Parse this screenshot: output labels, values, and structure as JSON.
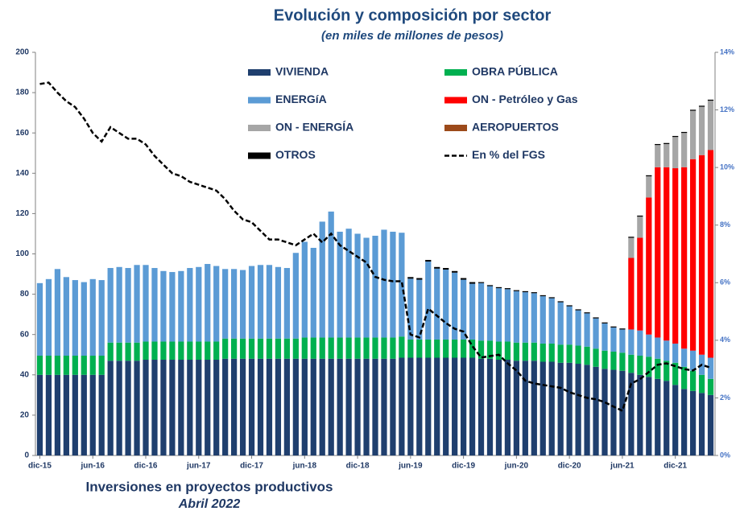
{
  "chart_data": {
    "type": "bar",
    "stacked": true,
    "title": "Evolución y composición por sector",
    "subtitle": "(en miles de millones de pesos)",
    "footer": "Inversiones en proyectos productivos",
    "footer_date": "Abril 2022",
    "legend": "upper center",
    "grid": false,
    "categories": [
      "dic-15",
      null,
      null,
      null,
      null,
      null,
      "jun-16",
      null,
      null,
      null,
      null,
      null,
      "dic-16",
      null,
      null,
      null,
      null,
      null,
      "jun-17",
      null,
      null,
      null,
      null,
      null,
      "dic-17",
      null,
      null,
      null,
      null,
      null,
      "jun-18",
      null,
      null,
      null,
      null,
      null,
      "dic-18",
      null,
      null,
      null,
      null,
      null,
      "jun-19",
      null,
      null,
      null,
      null,
      null,
      "dic-19",
      null,
      null,
      null,
      null,
      null,
      "jun-20",
      null,
      null,
      null,
      null,
      null,
      "dic-20",
      null,
      null,
      null,
      null,
      null,
      "jun-21",
      null,
      null,
      null,
      null,
      null,
      "dic-21",
      null,
      null,
      null,
      null
    ],
    "ylim": [
      0,
      200
    ],
    "yticks": [
      0,
      20,
      40,
      60,
      80,
      100,
      120,
      140,
      160,
      180,
      200
    ],
    "y2lim": [
      0,
      14
    ],
    "y2ticks": [
      {
        "value": 0,
        "label": "0%"
      },
      {
        "value": 2,
        "label": "2%"
      },
      {
        "value": 4,
        "label": "4%"
      },
      {
        "value": 6,
        "label": "6%"
      },
      {
        "value": 8,
        "label": "8%"
      },
      {
        "value": 10,
        "label": "10%"
      },
      {
        "value": 12,
        "label": "12%"
      },
      {
        "value": 14,
        "label": "14%"
      }
    ],
    "series": [
      {
        "name": "VIVIENDA",
        "color": "#1f3f6e",
        "values": [
          40,
          40,
          40,
          40,
          40,
          40,
          40,
          40,
          47,
          47,
          47,
          47,
          47.5,
          47.5,
          47.5,
          47.5,
          47.5,
          47.5,
          47.5,
          47.5,
          47.5,
          48,
          48,
          48,
          48,
          48,
          48,
          48,
          48,
          48,
          48,
          48,
          48,
          48,
          48,
          48,
          48,
          48,
          48,
          48,
          48,
          48.5,
          48.5,
          48.5,
          48.5,
          48.5,
          48.5,
          48.5,
          48.5,
          48.5,
          48,
          48,
          47.5,
          47.5,
          47,
          47,
          47,
          46.5,
          46.5,
          46,
          46,
          45.5,
          45,
          44,
          43,
          42.5,
          42,
          41,
          40,
          39,
          38,
          37,
          35,
          33,
          32,
          31,
          30
        ]
      },
      {
        "name": "OBRA  PÚBLICA",
        "color": "#00b050",
        "values": [
          9.5,
          9.5,
          9.5,
          9.5,
          9.5,
          9.5,
          9.5,
          9.5,
          9,
          9,
          9,
          9,
          9,
          9,
          9,
          9,
          9,
          9,
          9,
          9,
          9,
          10,
          10,
          10,
          10,
          10,
          10,
          10,
          10,
          10,
          10.5,
          10.5,
          10.5,
          10.5,
          10.5,
          10.5,
          10.5,
          10.5,
          10.5,
          10.5,
          10.5,
          10.5,
          9,
          9,
          9,
          9,
          9,
          9,
          9,
          9,
          9,
          9,
          9,
          9,
          9,
          9,
          9,
          9,
          9,
          9,
          9,
          9,
          9,
          9,
          9,
          9,
          9,
          9,
          9.5,
          10,
          10,
          10,
          11,
          11,
          10,
          9,
          8
        ]
      },
      {
        "name": "ENERGíA",
        "color": "#5b9bd5",
        "values": [
          36,
          38,
          43,
          39,
          37.5,
          36.5,
          38,
          37.5,
          37,
          37.5,
          37,
          38.5,
          38,
          36.5,
          35,
          34.5,
          35,
          36.5,
          37,
          38.5,
          37.5,
          34.5,
          34.5,
          34,
          36,
          36.5,
          36.5,
          35.5,
          35,
          42.5,
          47.5,
          44.5,
          57.5,
          62.5,
          52.5,
          54,
          51.5,
          49.5,
          50.5,
          53.5,
          52.5,
          51.5,
          30.2,
          29.7,
          38.7,
          35.2,
          34.7,
          33.2,
          29.7,
          27.7,
          28.5,
          27,
          26.5,
          26,
          25.5,
          25,
          24.5,
          23.5,
          22.5,
          21,
          19,
          17.5,
          16.5,
          15,
          13.5,
          12,
          11.5,
          12.5,
          12.5,
          11,
          10.5,
          10,
          9.5,
          9,
          10,
          10,
          10.5
        ]
      },
      {
        "name": "ON - Petróleo y Gas",
        "color": "#ff0000",
        "values": [
          0,
          0,
          0,
          0,
          0,
          0,
          0,
          0,
          0,
          0,
          0,
          0,
          0,
          0,
          0,
          0,
          0,
          0,
          0,
          0,
          0,
          0,
          0,
          0,
          0,
          0,
          0,
          0,
          0,
          0,
          0,
          0,
          0,
          0,
          0,
          0,
          0,
          0,
          0,
          0,
          0,
          0,
          0,
          0,
          0,
          0,
          0,
          0,
          0,
          0,
          0,
          0,
          0,
          0,
          0,
          0,
          0,
          0,
          0,
          0,
          0,
          0,
          0,
          0,
          0,
          0,
          0,
          35.5,
          46,
          68,
          84.5,
          86,
          87,
          90,
          95,
          99,
          103
        ]
      },
      {
        "name": "ON - ENERGÍA",
        "color": "#a6a6a6",
        "values": [
          0,
          0,
          0,
          0,
          0,
          0,
          0,
          0,
          0,
          0,
          0,
          0,
          0,
          0,
          0,
          0,
          0,
          0,
          0,
          0,
          0,
          0,
          0,
          0,
          0,
          0,
          0,
          0,
          0,
          0,
          0,
          0,
          0,
          0,
          0,
          0,
          0,
          0,
          0,
          0,
          0,
          0,
          0,
          0,
          0,
          0,
          0,
          0,
          0,
          0,
          0,
          0,
          0,
          0,
          0,
          0,
          0,
          0,
          0,
          0,
          0,
          0,
          0,
          0,
          0,
          0,
          0,
          10,
          10.5,
          10.5,
          11,
          11.5,
          15.5,
          17,
          24,
          24,
          24.5
        ]
      },
      {
        "name": "AEROPUERTOS",
        "color": "#9c4a1a",
        "values": [
          0,
          0,
          0,
          0,
          0,
          0,
          0,
          0,
          0,
          0,
          0,
          0,
          0,
          0,
          0,
          0,
          0,
          0,
          0,
          0,
          0,
          0,
          0,
          0,
          0,
          0,
          0,
          0,
          0,
          0,
          0,
          0,
          0,
          0,
          0,
          0,
          0,
          0,
          0,
          0,
          0,
          0,
          0,
          0,
          0,
          0,
          0,
          0,
          0,
          0,
          0,
          0,
          0,
          0,
          0,
          0,
          0,
          0,
          0,
          0,
          0,
          0,
          0,
          0,
          0,
          0,
          0,
          0,
          0,
          0,
          0,
          0,
          0,
          0,
          0,
          0,
          0
        ]
      },
      {
        "name": "OTROS",
        "color": "#000000",
        "values": [
          0,
          0,
          0,
          0,
          0,
          0,
          0,
          0,
          0,
          0,
          0,
          0,
          0,
          0,
          0,
          0,
          0,
          0,
          0,
          0,
          0,
          0,
          0,
          0,
          0,
          0,
          0,
          0,
          0,
          0,
          0,
          0,
          0,
          0,
          0,
          0,
          0,
          0,
          0,
          0,
          0,
          0,
          0.8,
          0.8,
          0.8,
          0.8,
          0.8,
          0.8,
          0.8,
          0.8,
          0.5,
          0.5,
          0.5,
          0.5,
          0.5,
          0.5,
          0.5,
          0.5,
          0.5,
          0.5,
          0.5,
          0.5,
          0.5,
          0.5,
          0.5,
          0.5,
          0.5,
          0.5,
          0.5,
          0.5,
          0.5,
          0.5,
          0.5,
          0.5,
          0.5,
          0.5,
          0.5
        ]
      },
      {
        "name": "En % del FGS",
        "color": "#000000",
        "type": "line",
        "style": "dashed",
        "axis": "y2",
        "values": [
          12.9,
          12.95,
          12.6,
          12.3,
          12.1,
          11.7,
          11.2,
          10.9,
          11.4,
          11.2,
          11.0,
          11.0,
          10.8,
          10.4,
          10.1,
          9.8,
          9.7,
          9.5,
          9.4,
          9.3,
          9.2,
          8.9,
          8.5,
          8.2,
          8.1,
          7.8,
          7.5,
          7.5,
          7.4,
          7.3,
          7.5,
          7.7,
          7.4,
          7.7,
          7.3,
          7.1,
          6.9,
          6.7,
          6.2,
          6.1,
          6.05,
          6.05,
          4.2,
          4.1,
          5.1,
          4.85,
          4.6,
          4.4,
          4.3,
          3.8,
          3.4,
          3.45,
          3.5,
          3.2,
          2.95,
          2.6,
          2.5,
          2.45,
          2.4,
          2.35,
          2.2,
          2.1,
          2.0,
          1.95,
          1.85,
          1.7,
          1.55,
          2.5,
          2.65,
          2.9,
          3.15,
          3.2,
          3.1,
          3.0,
          2.95,
          3.15,
          3.05
        ]
      }
    ]
  }
}
